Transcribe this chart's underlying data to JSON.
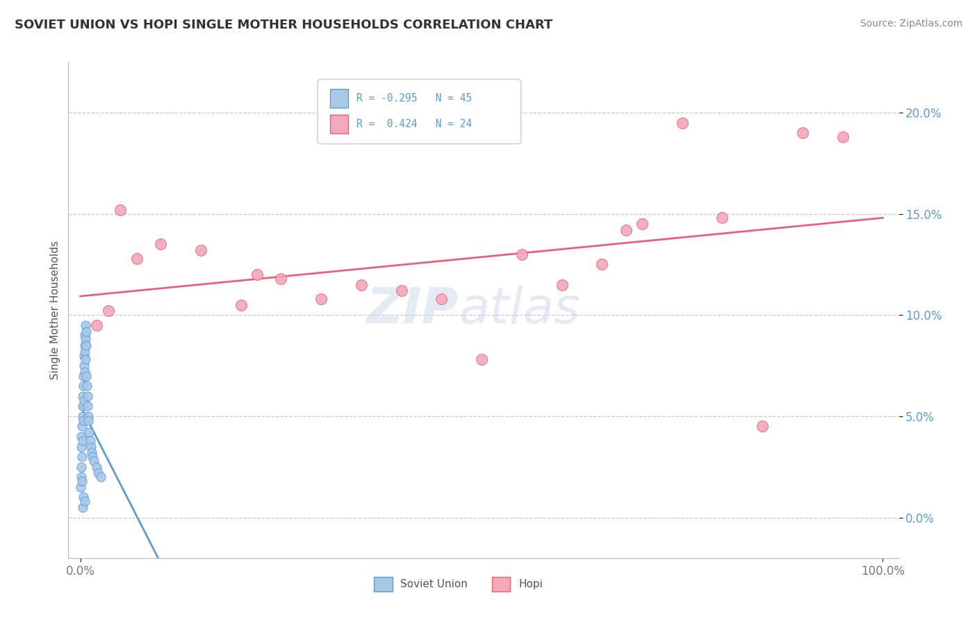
{
  "title": "SOVIET UNION VS HOPI SINGLE MOTHER HOUSEHOLDS CORRELATION CHART",
  "source": "Source: ZipAtlas.com",
  "ylabel": "Single Mother Households",
  "ytick_vals": [
    0.0,
    5.0,
    10.0,
    15.0,
    20.0
  ],
  "xlim": [
    -1.5,
    102.0
  ],
  "ylim": [
    -2.0,
    22.5
  ],
  "legend_soviet_r": "-0.295",
  "legend_soviet_n": "45",
  "legend_hopi_r": "0.424",
  "legend_hopi_n": "24",
  "soviet_color": "#a8c8e8",
  "hopi_color": "#f4a8b8",
  "soviet_edge_color": "#5b9bd5",
  "hopi_edge_color": "#e8607a",
  "hopi_line_color": "#e8607a",
  "soviet_line_color": "#5b9bd5",
  "soviet_x": [
    0.05,
    0.08,
    0.1,
    0.12,
    0.15,
    0.18,
    0.2,
    0.22,
    0.25,
    0.28,
    0.3,
    0.32,
    0.35,
    0.38,
    0.4,
    0.42,
    0.45,
    0.48,
    0.5,
    0.52,
    0.55,
    0.58,
    0.6,
    0.62,
    0.65,
    0.68,
    0.7,
    0.75,
    0.8,
    0.85,
    0.9,
    0.95,
    1.0,
    1.1,
    1.2,
    1.3,
    1.4,
    1.5,
    1.7,
    2.0,
    2.2,
    2.5,
    0.3,
    0.4,
    0.5
  ],
  "soviet_y": [
    1.5,
    2.0,
    3.5,
    4.0,
    2.5,
    1.8,
    3.0,
    4.5,
    5.0,
    3.8,
    6.0,
    5.5,
    4.8,
    6.5,
    7.0,
    5.8,
    8.0,
    7.5,
    8.5,
    7.2,
    9.0,
    8.2,
    9.5,
    8.8,
    7.8,
    9.2,
    8.5,
    7.0,
    6.5,
    6.0,
    5.5,
    5.0,
    4.8,
    4.2,
    3.8,
    3.5,
    3.2,
    3.0,
    2.8,
    2.5,
    2.2,
    2.0,
    0.5,
    1.0,
    0.8
  ],
  "hopi_x": [
    2.0,
    3.5,
    5.0,
    7.0,
    10.0,
    15.0,
    20.0,
    22.0,
    25.0,
    30.0,
    35.0,
    40.0,
    45.0,
    50.0,
    55.0,
    60.0,
    65.0,
    68.0,
    70.0,
    75.0,
    80.0,
    85.0,
    90.0,
    95.0
  ],
  "hopi_y": [
    9.5,
    10.2,
    15.2,
    12.8,
    13.5,
    13.2,
    10.5,
    12.0,
    11.8,
    10.8,
    11.5,
    11.2,
    10.8,
    7.8,
    13.0,
    11.5,
    12.5,
    14.2,
    14.5,
    19.5,
    14.8,
    4.5,
    19.0,
    18.8
  ]
}
